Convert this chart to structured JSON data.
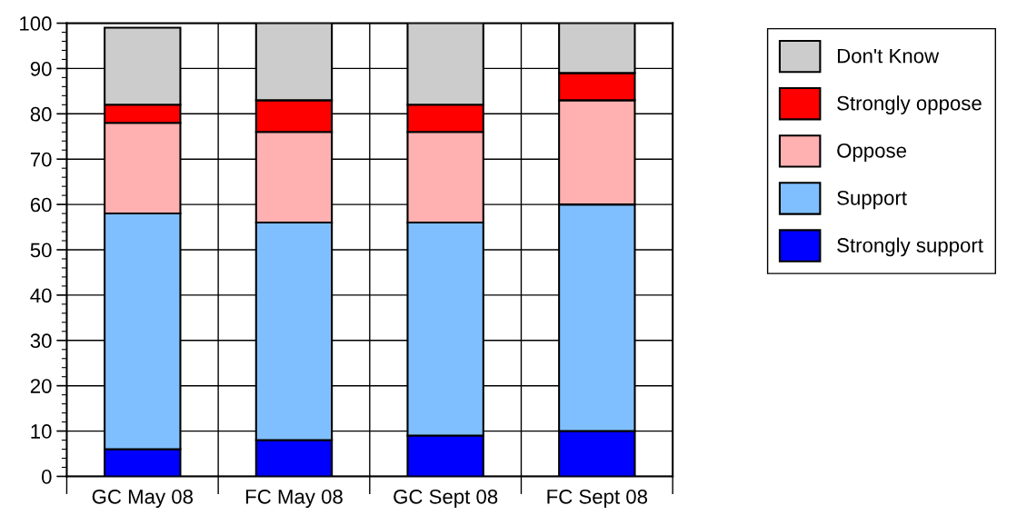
{
  "chart_data": {
    "type": "bar",
    "stacked": true,
    "categories": [
      "GC May 08",
      "FC May 08",
      "GC Sept 08",
      "FC Sept 08"
    ],
    "series": [
      {
        "name": "Strongly support",
        "color": "#0000ff",
        "values": [
          6,
          8,
          9,
          10
        ]
      },
      {
        "name": "Support",
        "color": "#80bfff",
        "values": [
          52,
          48,
          47,
          50
        ]
      },
      {
        "name": "Oppose",
        "color": "#ffb0b0",
        "values": [
          20,
          20,
          20,
          23
        ]
      },
      {
        "name": "Strongly oppose",
        "color": "#ff0000",
        "values": [
          4,
          7,
          6,
          6
        ]
      },
      {
        "name": "Don't Know",
        "color": "#cccccc",
        "values": [
          17,
          17,
          18,
          11
        ]
      }
    ],
    "ylim": [
      0,
      100
    ],
    "yticks": [
      0,
      10,
      20,
      30,
      40,
      50,
      60,
      70,
      80,
      90,
      100
    ],
    "grid": true,
    "legend": "top right"
  }
}
